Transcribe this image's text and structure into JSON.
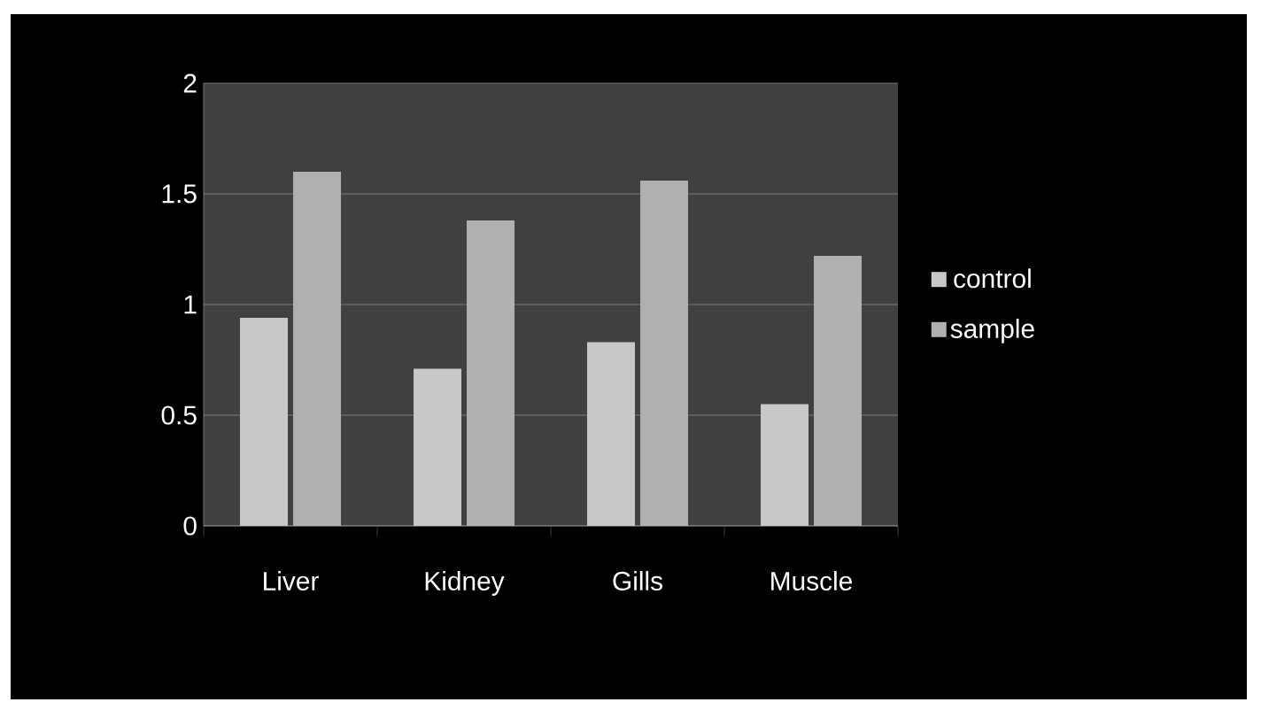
{
  "chart_data": {
    "type": "bar",
    "categories": [
      "Liver",
      "Kidney",
      "Gills",
      "Muscle"
    ],
    "series": [
      {
        "name": "control",
        "color": "#c8c8c8",
        "values": [
          0.94,
          0.71,
          0.83,
          0.55
        ]
      },
      {
        "name": "sample",
        "color": "#b0b0b0",
        "values": [
          1.6,
          1.38,
          1.56,
          1.22
        ]
      }
    ],
    "ylim": [
      0,
      2
    ],
    "yticks": [
      0,
      0.5,
      1,
      1.5,
      2
    ],
    "grid": "y",
    "legend": "right"
  }
}
